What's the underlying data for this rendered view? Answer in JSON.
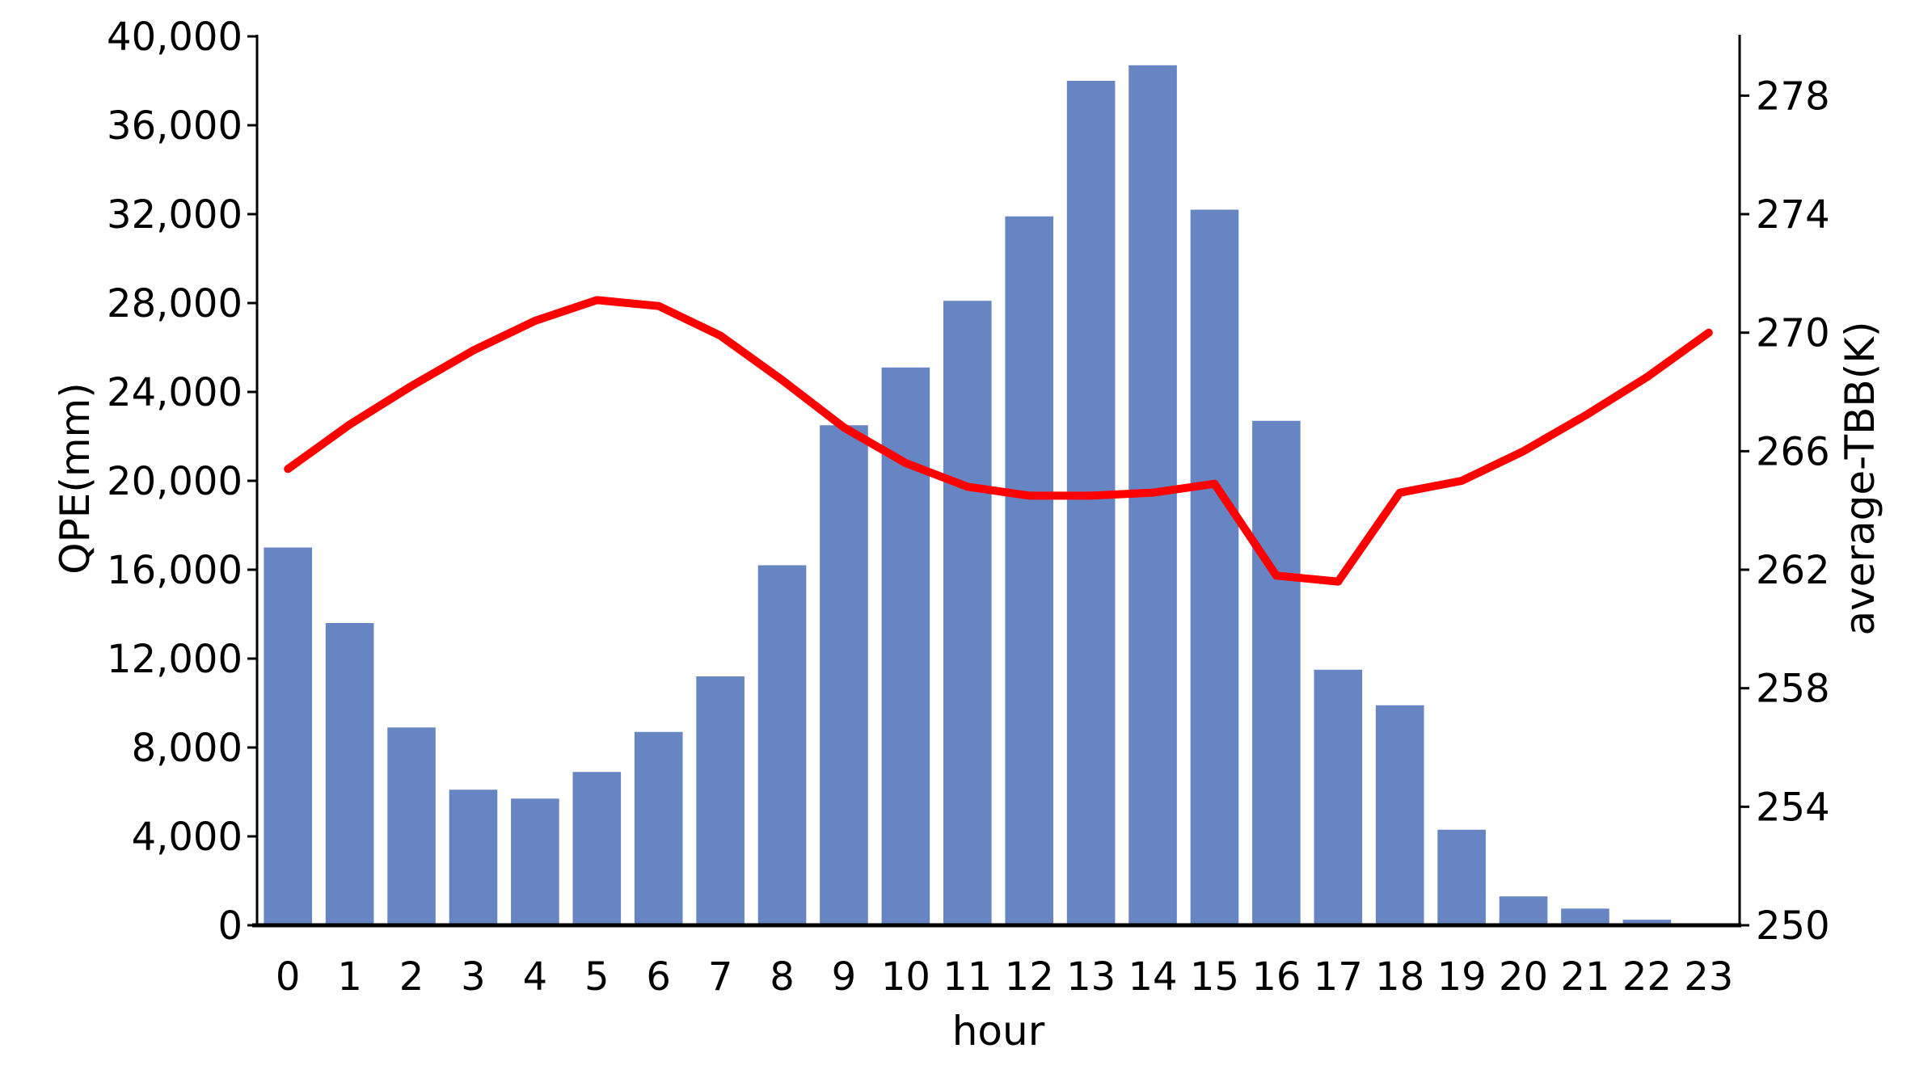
{
  "chart_data": {
    "type": "bar",
    "title": "",
    "categories": [
      "0",
      "1",
      "2",
      "3",
      "4",
      "5",
      "6",
      "7",
      "8",
      "9",
      "10",
      "11",
      "12",
      "13",
      "14",
      "15",
      "16",
      "17",
      "18",
      "19",
      "20",
      "21",
      "22",
      "23"
    ],
    "series": [
      {
        "type": "bar",
        "axis": "left",
        "values": [
          17000,
          13600,
          8900,
          6100,
          5700,
          6900,
          8700,
          11200,
          16200,
          22500,
          25100,
          28100,
          31900,
          38000,
          38700,
          32200,
          22700,
          11500,
          9900,
          4300,
          1300,
          750,
          250,
          80
        ]
      },
      {
        "type": "line",
        "axis": "right",
        "values": [
          265.4,
          266.9,
          268.2,
          269.4,
          270.4,
          271.1,
          270.9,
          269.9,
          268.4,
          266.8,
          265.6,
          264.8,
          264.5,
          264.5,
          264.6,
          264.9,
          261.8,
          261.6,
          264.6,
          265.0,
          266.0,
          267.2,
          268.5,
          270.0
        ]
      }
    ],
    "xlabel": "hour",
    "ylabel": "QPE(mm)",
    "y2label": "average-TBB(K)",
    "ylim": [
      0,
      40000
    ],
    "y2lim": [
      250,
      280
    ],
    "yticks": [
      "0",
      "4,000",
      "8,000",
      "12,000",
      "16,000",
      "20,000",
      "24,000",
      "28,000",
      "32,000",
      "36,000",
      "40,000"
    ],
    "y2ticks": [
      "250",
      "254",
      "258",
      "262",
      "266",
      "270",
      "274",
      "278"
    ],
    "grid": false,
    "legend": "none",
    "colors": {
      "bar": "#6885c3",
      "line": "#ff0000",
      "axis": "#000000"
    }
  }
}
